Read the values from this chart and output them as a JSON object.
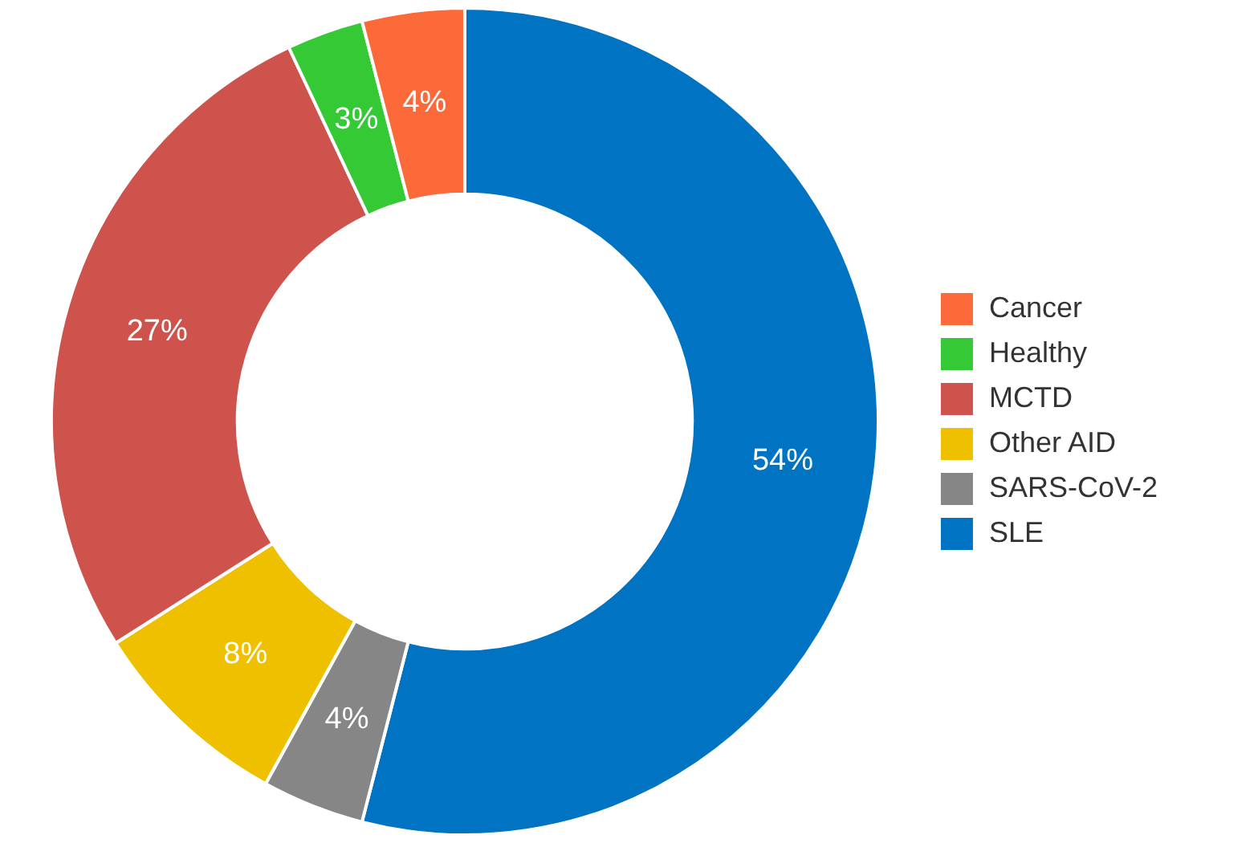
{
  "chart_data": {
    "type": "donut",
    "categories": [
      "SLE",
      "SARS-CoV-2",
      "Other AID",
      "MCTD",
      "Healthy",
      "Cancer"
    ],
    "values": [
      54,
      4,
      8,
      27,
      3,
      4
    ],
    "value_labels": [
      "54%",
      "4%",
      "8%",
      "27%",
      "3%",
      "4%"
    ],
    "colors": [
      "#0073c2",
      "#868686",
      "#efc000",
      "#cd534c",
      "#36c936",
      "#fc6a3a"
    ],
    "legend": "right"
  }
}
